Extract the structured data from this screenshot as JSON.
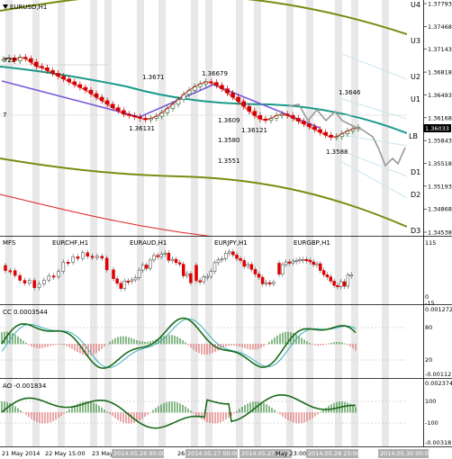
{
  "chart_data": {
    "type": "line",
    "symbol": "EURUSD",
    "timeframe": "H1",
    "title": "EURUSD,H1",
    "current_price": "1.36033",
    "price_axis": {
      "range": [
        1.34538,
        1.37793
      ],
      "ticks": [
        "1.37793",
        "1.37468",
        "1.37143",
        "1.36818",
        "1.36493",
        "1.36168",
        "1.35843",
        "1.35518",
        "1.35193",
        "1.34868",
        "1.34538"
      ]
    },
    "levels": [
      "U4",
      "U3",
      "U2",
      "U1",
      "LB",
      "D1",
      "D2",
      "D3"
    ],
    "annotations": [
      {
        "text": "1.3671",
        "price": 1.3671
      },
      {
        "text": "1.36679",
        "price": 1.36679
      },
      {
        "text": "1.36131",
        "price": 1.36131
      },
      {
        "text": "1.3609",
        "price": 1.3609
      },
      {
        "text": "1.36121",
        "price": 1.36121
      },
      {
        "text": "1.3580",
        "price": 1.358
      },
      {
        "text": "1.3551",
        "price": 1.3551
      },
      {
        "text": "1.3646",
        "price": 1.3646
      },
      {
        "text": "1.3588",
        "price": 1.3588
      },
      {
        "text": "722",
        "price": 1.3722
      },
      {
        "text": "7",
        "price": 1.3627
      }
    ],
    "x_labels": [
      "21 May 2014",
      "22 May 15:00",
      "23 May",
      "2014.05.26 00:00",
      "26",
      "2014.05.27 00:00",
      "2014.05.27 18:00",
      "May 23:00",
      "2014.05.28 23:00",
      "2014.05.30 00:00"
    ],
    "series": [
      {
        "name": "EURUSD close",
        "color": "#d40000",
        "values": [
          1.37,
          1.3702,
          1.3698,
          1.3703,
          1.3701,
          1.3696,
          1.369,
          1.3688,
          1.3684,
          1.368,
          1.3676,
          1.3672,
          1.3668,
          1.3664,
          1.366,
          1.3656,
          1.3651,
          1.3646,
          1.3641,
          1.3636,
          1.3631,
          1.3627,
          1.3622,
          1.362,
          1.3618,
          1.3616,
          1.3614,
          1.3616,
          1.3619,
          1.3624,
          1.363,
          1.3636,
          1.3643,
          1.365,
          1.3656,
          1.3661,
          1.3665,
          1.3668,
          1.3667,
          1.3663,
          1.3658,
          1.3652,
          1.3646,
          1.364,
          1.3633,
          1.3626,
          1.362,
          1.3615,
          1.3613,
          1.3616,
          1.362,
          1.3622,
          1.362,
          1.3616,
          1.3612,
          1.3608,
          1.3604,
          1.36,
          1.3596,
          1.3592,
          1.3589,
          1.359,
          1.3594,
          1.3598,
          1.3601,
          1.3603
        ]
      }
    ],
    "indicators": [
      {
        "name": "MFS",
        "label": "MFS"
      },
      {
        "name": "CC",
        "label": "CC 0.0003544",
        "ticks": [
          "0.001272",
          "80",
          "20",
          "-0.001121"
        ]
      },
      {
        "name": "AO",
        "label": "AO -0.001834",
        "ticks": [
          "0.002374",
          "100",
          "-100",
          "-0.003181"
        ]
      }
    ],
    "mfs_panels": [
      "EURCHF,H1",
      "EURAUD,H1",
      "EURJPY,H1",
      "EURGBP,H1"
    ],
    "mfs_ticks": [
      "115",
      "0",
      "-15"
    ]
  }
}
